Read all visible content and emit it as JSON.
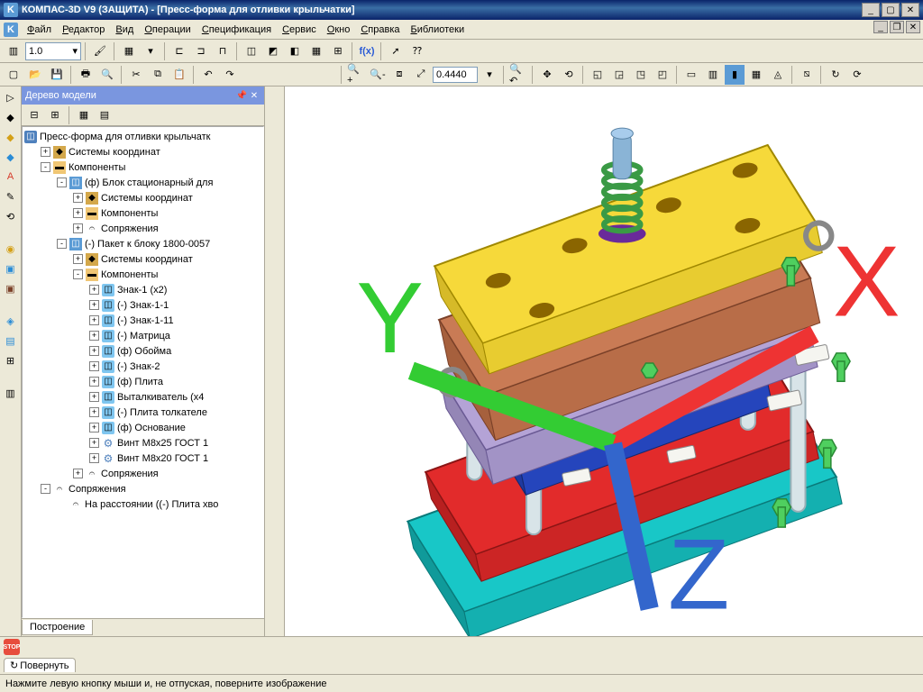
{
  "window": {
    "title": "КОМПАС-3D V9 (ЗАЩИТА) - [Пресс-форма для отливки крыльчатки]",
    "app_icon_letter": "K"
  },
  "menu": [
    "Файл",
    "Редактор",
    "Вид",
    "Операции",
    "Спецификация",
    "Сервис",
    "Окно",
    "Справка",
    "Библиотеки"
  ],
  "toolbar1": {
    "scale": "1.0"
  },
  "toolbar2": {
    "zoom": "0.4440"
  },
  "tree": {
    "title": "Дерево модели",
    "tab": "Построение",
    "root": "Пресс-форма для отливки крыльчатк",
    "nodes": [
      {
        "indent": 1,
        "toggle": "+",
        "icon": "cs",
        "label": "Системы координат"
      },
      {
        "indent": 1,
        "toggle": "-",
        "icon": "folder",
        "label": "Компоненты"
      },
      {
        "indent": 2,
        "toggle": "-",
        "icon": "comp",
        "label": "(ф) Блок стационарный для "
      },
      {
        "indent": 3,
        "toggle": "+",
        "icon": "cs",
        "label": "Системы координат"
      },
      {
        "indent": 3,
        "toggle": "+",
        "icon": "folder",
        "label": "Компоненты"
      },
      {
        "indent": 3,
        "toggle": "+",
        "icon": "mate",
        "label": "Сопряжения"
      },
      {
        "indent": 2,
        "toggle": "-",
        "icon": "comp",
        "label": "(-) Пакет к блоку 1800-0057"
      },
      {
        "indent": 3,
        "toggle": "+",
        "icon": "cs",
        "label": "Системы координат"
      },
      {
        "indent": 3,
        "toggle": "-",
        "icon": "folder",
        "label": "Компоненты"
      },
      {
        "indent": 4,
        "toggle": "+",
        "icon": "part",
        "label": "Знак-1 (x2)"
      },
      {
        "indent": 4,
        "toggle": "+",
        "icon": "part",
        "label": "(-) Знак-1-1"
      },
      {
        "indent": 4,
        "toggle": "+",
        "icon": "part",
        "label": "(-) Знак-1-11"
      },
      {
        "indent": 4,
        "toggle": "+",
        "icon": "part",
        "label": "(-) Матрица"
      },
      {
        "indent": 4,
        "toggle": "+",
        "icon": "part",
        "label": "(ф) Обойма"
      },
      {
        "indent": 4,
        "toggle": "+",
        "icon": "part",
        "label": "(-) Знак-2"
      },
      {
        "indent": 4,
        "toggle": "+",
        "icon": "part",
        "label": "(ф) Плита"
      },
      {
        "indent": 4,
        "toggle": "+",
        "icon": "part",
        "label": "Выталкиватель (x4"
      },
      {
        "indent": 4,
        "toggle": "+",
        "icon": "part",
        "label": "(-) Плита толкателе"
      },
      {
        "indent": 4,
        "toggle": "+",
        "icon": "part",
        "label": "(ф) Основание"
      },
      {
        "indent": 4,
        "toggle": "+",
        "icon": "screw",
        "label": "Винт M8x25 ГОСТ 1"
      },
      {
        "indent": 4,
        "toggle": "+",
        "icon": "screw",
        "label": "Винт M8x20 ГОСТ 1"
      },
      {
        "indent": 3,
        "toggle": "+",
        "icon": "mate",
        "label": "Сопряжения"
      },
      {
        "indent": 1,
        "toggle": "-",
        "icon": "mate",
        "label": "Сопряжения"
      },
      {
        "indent": 2,
        "toggle": "",
        "icon": "mate",
        "label": "На расстоянии ((-) Плита хво"
      }
    ]
  },
  "cmd": {
    "tab": "Повернуть"
  },
  "status": "Нажмите левую кнопку мыши и, не отпуская, поверните изображение",
  "model": {
    "plates": [
      {
        "fill": "#f6d93a",
        "stroke": "#a08800"
      },
      {
        "fill": "#c97b55",
        "stroke": "#7a4028"
      },
      {
        "fill": "#b4a3d6",
        "stroke": "#6a5a94"
      },
      {
        "fill": "#2a4fd6",
        "stroke": "#14276b"
      },
      {
        "fill": "#e22b2b",
        "stroke": "#8a1515"
      },
      {
        "fill": "#18c7c7",
        "stroke": "#0a7a7a"
      }
    ],
    "pillar": "#d8e4e8",
    "bolt": "#4fcf5f",
    "spring": "#5fc26a",
    "shaft": "#8ab4d6"
  }
}
